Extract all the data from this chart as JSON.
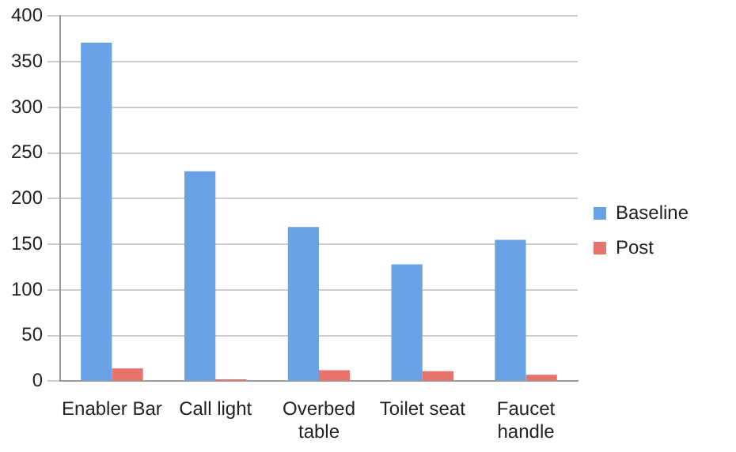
{
  "chart_data": {
    "type": "bar",
    "categories": [
      "Enabler Bar",
      "Call light",
      "Overbed table",
      "Toilet seat",
      "Faucet handle"
    ],
    "series": [
      {
        "name": "Baseline",
        "color": "#6aa2e6",
        "values": [
          371,
          230,
          169,
          128,
          155
        ]
      },
      {
        "name": "Post",
        "color": "#e8726c",
        "values": [
          14,
          2,
          12,
          11,
          7
        ]
      }
    ],
    "ylim": [
      0,
      400
    ],
    "yticks": [
      0,
      50,
      100,
      150,
      200,
      250,
      300,
      350,
      400
    ],
    "grid": "y",
    "legend": "right"
  }
}
